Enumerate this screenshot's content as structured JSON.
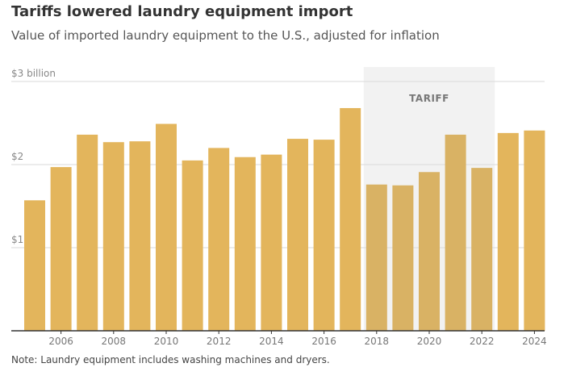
{
  "header": {
    "title": "Tariffs lowered laundry equipment import",
    "subtitle": "Value of imported laundry equipment to the U.S., adjusted for inflation"
  },
  "footer": {
    "note": "Note: Laundry equipment includes washing machines and dryers."
  },
  "colors": {
    "bar": "#E3B55C",
    "bar_tariff": "#D9B264",
    "tariff_band": "#F2F2F2",
    "gridline": "#D9D9D9",
    "baseline": "#333333"
  },
  "chart_data": {
    "type": "bar",
    "categories": [
      "2005",
      "2006",
      "2007",
      "2008",
      "2009",
      "2010",
      "2011",
      "2012",
      "2013",
      "2014",
      "2015",
      "2016",
      "2017",
      "2018",
      "2019",
      "2020",
      "2021",
      "2022",
      "2023",
      "2024"
    ],
    "values": [
      1.57,
      1.97,
      2.36,
      2.27,
      2.28,
      2.49,
      2.05,
      2.2,
      2.09,
      2.12,
      2.31,
      2.3,
      2.68,
      1.76,
      1.75,
      1.91,
      2.36,
      1.96,
      2.38,
      2.41
    ],
    "ylim": [
      0,
      3
    ],
    "yticks": [
      {
        "value": 3,
        "label": "$3 billion"
      },
      {
        "value": 2,
        "label": "$2"
      },
      {
        "value": 1,
        "label": "$1"
      }
    ],
    "xtick_labels": [
      "2006",
      "2008",
      "2010",
      "2012",
      "2014",
      "2016",
      "2018",
      "2020",
      "2022",
      "2024"
    ],
    "annotation": {
      "label": "TARIFF",
      "start": "2018",
      "end": "2022"
    },
    "grid": true
  }
}
